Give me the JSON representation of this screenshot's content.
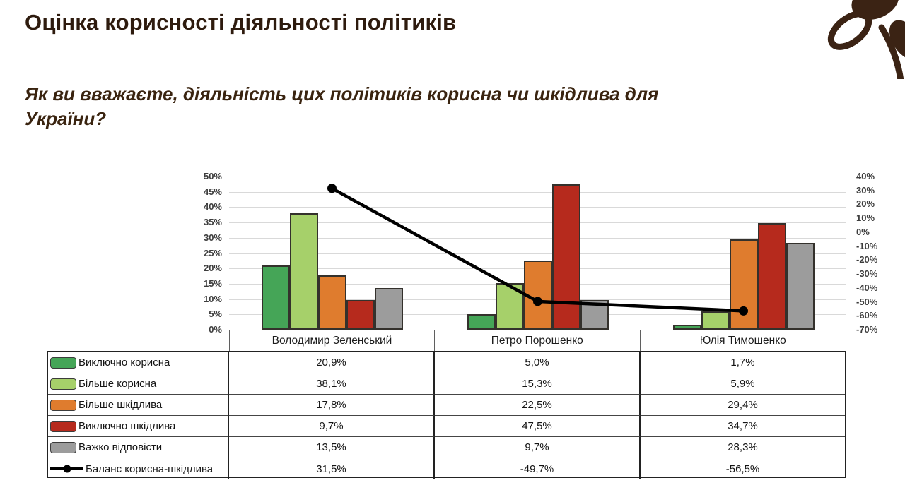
{
  "header": {
    "title": "Оцінка корисності діяльності політиків"
  },
  "question": {
    "line1": "Як ви вважаєте, діяльність цих політиків корисна чи шкідлива для",
    "line2": "України?"
  },
  "logo": {
    "name": "flower-logo",
    "color": "#3b2314"
  },
  "chart_data": {
    "type": "bar",
    "subtype": "grouped bars with balance line on secondary axis",
    "categories": [
      "Володимир Зеленський",
      "Петро Порошенко",
      "Юлія Тимошенко"
    ],
    "series": [
      {
        "name": "Виключно корисна",
        "type": "bar",
        "color": "#45a557",
        "values": [
          20.9,
          5.0,
          1.7
        ]
      },
      {
        "name": "Більше корисна",
        "type": "bar",
        "color": "#a6d06a",
        "values": [
          38.1,
          15.3,
          5.9
        ]
      },
      {
        "name": "Більше шкідлива",
        "type": "bar",
        "color": "#df7c2e",
        "values": [
          17.8,
          22.5,
          29.4
        ]
      },
      {
        "name": "Виключно шкідлива",
        "type": "bar",
        "color": "#b62a1d",
        "values": [
          9.7,
          47.5,
          34.7
        ]
      },
      {
        "name": "Важко відповісти",
        "type": "bar",
        "color": "#9c9c9c",
        "values": [
          13.5,
          9.7,
          28.3
        ]
      },
      {
        "name": "Баланс корисна-шкідлива",
        "type": "line",
        "color": "#000000",
        "axis": "right",
        "values": [
          31.5,
          -49.7,
          -56.5
        ]
      }
    ],
    "left_axis": {
      "min": 0,
      "max": 50,
      "ticks": [
        "50%",
        "45%",
        "40%",
        "35%",
        "30%",
        "25%",
        "20%",
        "15%",
        "10%",
        "5%",
        "0%"
      ]
    },
    "right_axis": {
      "min": -70,
      "max": 40,
      "ticks": [
        "40%",
        "30%",
        "20%",
        "10%",
        "0%",
        "-10%",
        "-20%",
        "-30%",
        "-40%",
        "-50%",
        "-60%",
        "-70%"
      ]
    },
    "grid": "horizontal",
    "legend_position": "table-left"
  },
  "table": {
    "columns": [
      "Володимир Зеленський",
      "Петро Порошенко",
      "Юлія Тимошенко"
    ],
    "rows": [
      {
        "label": "Виключно корисна",
        "color": "#45a557",
        "values": [
          "20,9%",
          "5,0%",
          "1,7%"
        ]
      },
      {
        "label": "Більше корисна",
        "color": "#a6d06a",
        "values": [
          "38,1%",
          "15,3%",
          "5,9%"
        ]
      },
      {
        "label": "Більше шкідлива",
        "color": "#df7c2e",
        "values": [
          "17,8%",
          "22,5%",
          "29,4%"
        ]
      },
      {
        "label": "Виключно шкідлива",
        "color": "#b62a1d",
        "values": [
          "9,7%",
          "47,5%",
          "34,7%"
        ]
      },
      {
        "label": "Важко відповісти",
        "color": "#9c9c9c",
        "values": [
          "13,5%",
          "9,7%",
          "28,3%"
        ]
      },
      {
        "label": "Баланс корисна-шкідлива",
        "color": "#000000",
        "values": [
          "31,5%",
          "-49,7%",
          "-56,5%"
        ]
      }
    ]
  }
}
